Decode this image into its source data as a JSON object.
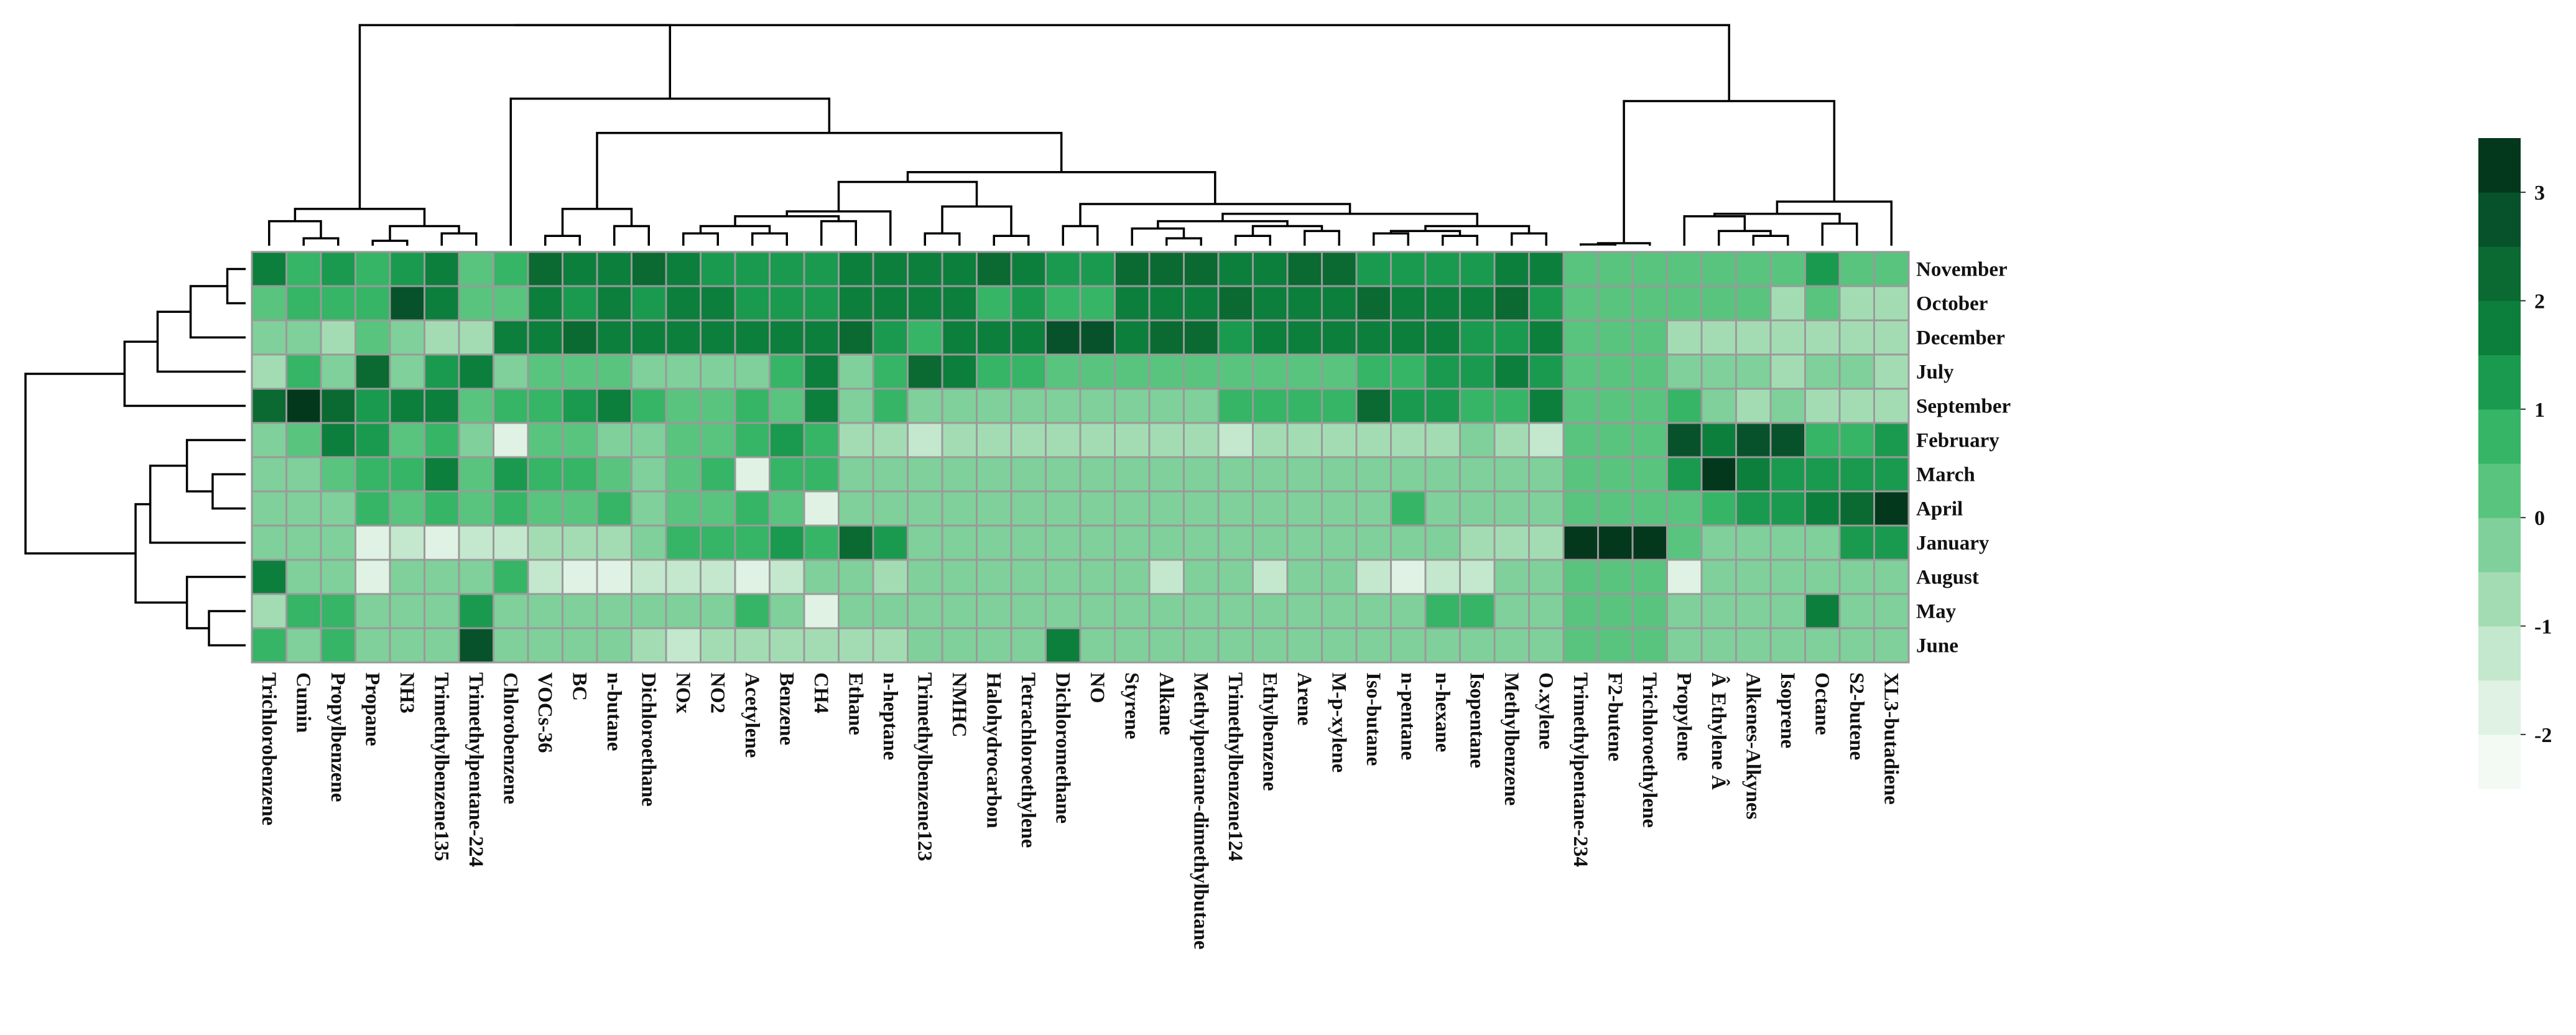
{
  "chart_data": {
    "type": "heatmap",
    "title": "",
    "columns": [
      "Trichlorobenzene",
      "Cumin",
      "Propylbenzene",
      "Propane",
      "NH3",
      "Trimethylbenzene135",
      "Trimethylpentane-224",
      "Chlorobenzene",
      "VOCs-36",
      "BC",
      "n-butane",
      "Dichloroethane",
      "NOx",
      "NO2",
      "Acetylene",
      "Benzene",
      "CH4",
      "Ethane",
      "n-heptane",
      "Trimethylbenzene123",
      "NMHC",
      "Halohydrocarbon",
      "Tetrachloroethylene",
      "Dichloromethane",
      "NO",
      "Styrene",
      "Alkane",
      "Methylpentane-dimethylbutane",
      "Trimethylbenzene124",
      "Ethylbenzene",
      "Arene",
      "M-p-xylene",
      "Iso-butane",
      "n-pentane",
      "n-hexane",
      "Isopentane",
      "Methylbenzene",
      "O.xylene",
      "Trimethylpentane-234",
      "F2-butene",
      "Trichloroethylene",
      "Propylene",
      "Â Ethylene Â",
      "Alkenes-Alkynes",
      "Isoprene",
      "Octane",
      "S2-butene",
      "XL3-butadiene"
    ],
    "rows": [
      "November",
      "October",
      "December",
      "July",
      "September",
      "February",
      "March",
      "April",
      "January",
      "August",
      "May",
      "June"
    ],
    "values": [
      [
        1.5,
        0.5,
        1.0,
        0.5,
        1.0,
        1.5,
        0.0,
        0.5,
        2.0,
        1.5,
        1.5,
        2.0,
        1.5,
        1.0,
        1.0,
        1.0,
        1.0,
        1.5,
        1.5,
        1.5,
        1.5,
        2.0,
        1.5,
        1.0,
        1.0,
        2.0,
        2.0,
        2.0,
        1.5,
        1.5,
        2.0,
        2.0,
        1.0,
        1.0,
        1.0,
        1.0,
        1.5,
        1.5,
        0.0,
        0.0,
        0.0,
        0.0,
        0.0,
        0.0,
        0.0,
        1.0,
        0.0,
        0.0
      ],
      [
        0.0,
        0.5,
        0.5,
        0.5,
        2.5,
        1.5,
        0.0,
        0.0,
        1.5,
        1.0,
        1.5,
        1.0,
        1.5,
        1.5,
        1.0,
        1.0,
        1.0,
        1.5,
        1.5,
        1.5,
        1.5,
        0.5,
        1.0,
        0.5,
        0.5,
        1.5,
        1.5,
        1.5,
        2.0,
        1.5,
        1.5,
        1.5,
        2.0,
        1.5,
        1.5,
        1.5,
        2.0,
        1.0,
        0.0,
        0.0,
        0.0,
        0.0,
        0.0,
        0.0,
        -1.0,
        0.0,
        -1.0,
        -1.0
      ],
      [
        -0.5,
        -0.5,
        -1.0,
        0.0,
        -0.5,
        -1.0,
        -1.0,
        1.5,
        1.5,
        2.0,
        1.5,
        1.5,
        1.5,
        1.5,
        1.5,
        1.5,
        1.5,
        2.0,
        1.0,
        0.5,
        1.5,
        1.5,
        1.5,
        2.5,
        2.5,
        1.5,
        2.0,
        2.0,
        1.0,
        1.5,
        1.5,
        1.5,
        1.5,
        1.5,
        1.5,
        1.0,
        1.0,
        1.5,
        0.0,
        0.0,
        0.0,
        -1.0,
        -1.0,
        -1.0,
        -1.0,
        -1.0,
        -1.0,
        -1.0
      ],
      [
        -1.0,
        0.5,
        -0.5,
        2.0,
        -0.5,
        1.0,
        1.5,
        -0.5,
        0.0,
        0.0,
        0.0,
        -0.5,
        -0.5,
        -0.5,
        -0.5,
        0.5,
        1.5,
        -0.5,
        0.5,
        2.0,
        1.5,
        0.5,
        0.5,
        0.0,
        0.0,
        0.0,
        0.0,
        0.0,
        0.0,
        0.0,
        0.0,
        0.0,
        0.5,
        0.5,
        1.0,
        1.0,
        1.5,
        1.0,
        0.0,
        0.0,
        0.0,
        -0.5,
        -0.5,
        -0.5,
        -1.0,
        -0.5,
        -0.5,
        -1.0
      ],
      [
        2.0,
        3.0,
        2.0,
        1.0,
        1.5,
        1.5,
        0.0,
        0.5,
        0.5,
        1.0,
        1.5,
        0.5,
        0.0,
        0.0,
        0.5,
        0.0,
        1.5,
        -0.5,
        0.5,
        -0.5,
        -0.5,
        -0.5,
        -0.5,
        -0.5,
        -0.5,
        -0.5,
        -0.5,
        -0.5,
        0.5,
        0.5,
        0.5,
        0.5,
        2.0,
        1.0,
        1.0,
        0.5,
        0.5,
        1.5,
        0.0,
        0.0,
        0.0,
        0.5,
        -0.5,
        -1.0,
        -0.5,
        -1.0,
        -1.0,
        -1.0
      ],
      [
        -0.5,
        0.0,
        1.5,
        1.0,
        0.0,
        0.5,
        -0.5,
        -2.0,
        0.0,
        0.0,
        -0.5,
        -0.5,
        0.0,
        0.0,
        0.5,
        1.0,
        0.5,
        -1.0,
        -1.0,
        -1.5,
        -1.0,
        -1.0,
        -1.0,
        -1.0,
        -1.0,
        -1.0,
        -1.0,
        -1.0,
        -1.5,
        -1.0,
        -1.0,
        -1.0,
        -1.0,
        -1.0,
        -1.0,
        -0.5,
        -1.0,
        -1.5,
        0.0,
        0.0,
        0.0,
        2.5,
        1.5,
        2.5,
        2.5,
        0.5,
        0.5,
        1.0
      ],
      [
        -0.5,
        -0.5,
        0.0,
        0.5,
        0.5,
        1.5,
        0.0,
        1.0,
        0.5,
        0.5,
        0.0,
        -0.5,
        0.0,
        0.5,
        -2.0,
        0.5,
        0.5,
        -0.5,
        -0.5,
        -0.5,
        -0.5,
        -0.5,
        -0.5,
        -0.5,
        -0.5,
        -0.5,
        -0.5,
        -0.5,
        -0.5,
        -0.5,
        -0.5,
        -0.5,
        -0.5,
        -0.5,
        -0.5,
        -0.5,
        -0.5,
        -0.5,
        0.0,
        0.0,
        0.0,
        1.0,
        3.0,
        1.5,
        1.0,
        1.0,
        1.0,
        1.0
      ],
      [
        -0.5,
        -0.5,
        -0.5,
        0.5,
        0.0,
        0.5,
        0.0,
        0.5,
        0.0,
        0.0,
        0.5,
        -0.5,
        0.0,
        0.0,
        0.5,
        0.0,
        -2.0,
        -0.5,
        -0.5,
        -0.5,
        -0.5,
        -0.5,
        -0.5,
        -0.5,
        -0.5,
        -0.5,
        -0.5,
        -0.5,
        -0.5,
        -0.5,
        -0.5,
        -0.5,
        -0.5,
        0.5,
        -0.5,
        -0.5,
        -0.5,
        -0.5,
        0.0,
        0.0,
        0.0,
        0.0,
        0.5,
        1.0,
        1.0,
        1.5,
        2.0,
        3.0
      ],
      [
        -0.5,
        -0.5,
        -0.5,
        -2.0,
        -1.5,
        -2.0,
        -1.5,
        -1.5,
        -1.0,
        -1.0,
        -1.0,
        -0.5,
        0.5,
        0.5,
        0.5,
        1.0,
        0.5,
        2.0,
        1.0,
        -0.5,
        -0.5,
        -0.5,
        -0.5,
        -0.5,
        -0.5,
        -0.5,
        -0.5,
        -0.5,
        -0.5,
        -0.5,
        -0.5,
        -0.5,
        -0.5,
        -0.5,
        -0.5,
        -1.0,
        -1.0,
        -1.0,
        3.0,
        3.0,
        3.0,
        0.0,
        -0.5,
        -0.5,
        -0.5,
        -0.5,
        1.0,
        1.0
      ],
      [
        1.5,
        -0.5,
        -0.5,
        -2.0,
        -0.5,
        -0.5,
        -0.5,
        0.5,
        -1.5,
        -2.0,
        -2.0,
        -1.5,
        -1.5,
        -1.5,
        -2.0,
        -1.5,
        -0.5,
        -0.5,
        -1.0,
        -0.5,
        -0.5,
        -0.5,
        -0.5,
        -0.5,
        -0.5,
        -0.5,
        -1.5,
        -0.5,
        -0.5,
        -1.5,
        -0.5,
        -0.5,
        -1.5,
        -2.0,
        -1.5,
        -1.5,
        -0.5,
        -0.5,
        0.0,
        0.0,
        0.0,
        -2.0,
        -0.5,
        -0.5,
        -0.5,
        -0.5,
        -0.5,
        -0.5
      ],
      [
        -1.0,
        0.5,
        0.5,
        -0.5,
        -0.5,
        -0.5,
        1.0,
        -0.5,
        -0.5,
        -0.5,
        -0.5,
        -0.5,
        -0.5,
        -0.5,
        0.5,
        -0.5,
        -2.0,
        -0.5,
        -0.5,
        -0.5,
        -0.5,
        -0.5,
        -0.5,
        -0.5,
        -0.5,
        -0.5,
        -0.5,
        -0.5,
        -0.5,
        -0.5,
        -0.5,
        -0.5,
        -0.5,
        -0.5,
        0.5,
        0.5,
        -0.5,
        -0.5,
        0.0,
        0.0,
        0.0,
        -0.5,
        -0.5,
        -0.5,
        -0.5,
        1.5,
        -0.5,
        -0.5
      ],
      [
        0.5,
        -0.5,
        0.5,
        -0.5,
        -0.5,
        -0.5,
        2.5,
        -0.5,
        -0.5,
        -0.5,
        -0.5,
        -1.0,
        -1.5,
        -1.0,
        -1.0,
        -1.0,
        -1.0,
        -1.0,
        -1.0,
        -0.5,
        -0.5,
        -0.5,
        -0.5,
        1.5,
        -0.5,
        -0.5,
        -0.5,
        -0.5,
        -0.5,
        -0.5,
        -0.5,
        -0.5,
        -0.5,
        -0.5,
        -0.5,
        -0.5,
        -0.5,
        -0.5,
        0.0,
        0.0,
        0.0,
        -0.5,
        -0.5,
        -0.5,
        -0.5,
        -0.5,
        -0.5,
        -0.5
      ]
    ],
    "color_scale": {
      "range": [
        -2.5,
        3.5
      ],
      "ticks": [
        3,
        2,
        1,
        0,
        -1,
        -2
      ],
      "tick_labels": [
        "3",
        "2",
        "1",
        "0",
        "-1",
        "-2"
      ],
      "colors": [
        "#f2faf3",
        "#dff2e3",
        "#c3e8cd",
        "#a3dcb3",
        "#7fd09a",
        "#58c47e",
        "#35b565",
        "#1a9a4e",
        "#0c7f3c",
        "#0a6a31",
        "#07522a",
        "#04381c"
      ]
    },
    "legend_position": "right",
    "dendrograms": [
      "top (columns)",
      "left (rows)"
    ]
  }
}
